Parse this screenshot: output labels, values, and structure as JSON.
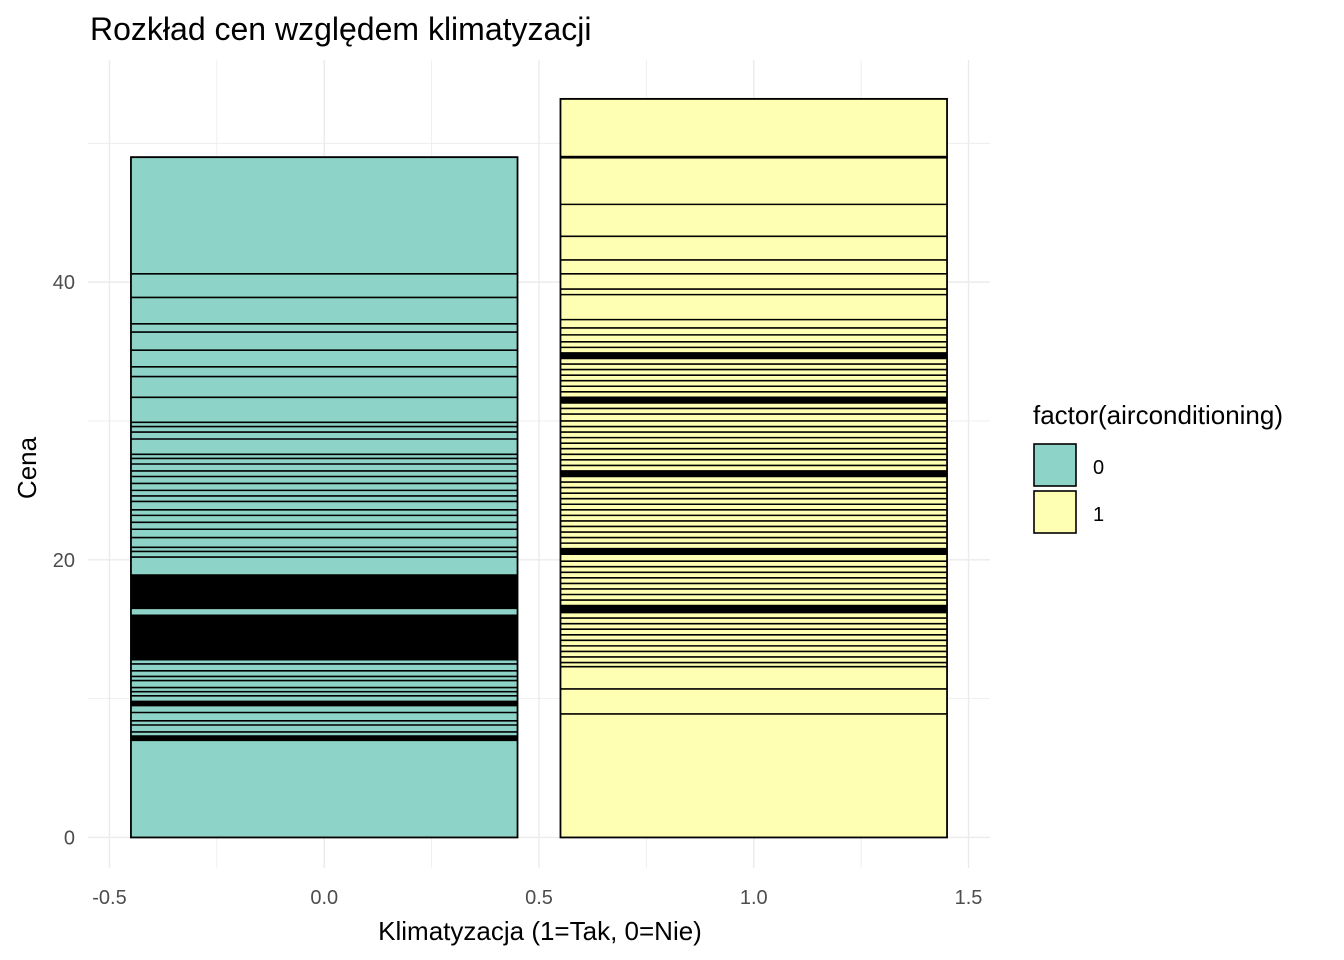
{
  "chart_data": {
    "type": "bar",
    "subtype": "stacked",
    "title": "Rozkład cen względem klimatyzacji",
    "xlabel": "Klimatyzacja (1=Tak, 0=Nie)",
    "ylabel": "Cena",
    "xlim": [
      -0.55,
      1.55
    ],
    "ylim": [
      -2.2,
      56
    ],
    "x_ticks": [
      -0.5,
      0.0,
      0.5,
      1.0,
      1.5
    ],
    "x_tick_labels": [
      "-0.5",
      "0.0",
      "0.5",
      "1.0",
      "1.5"
    ],
    "y_ticks": [
      0,
      20,
      40
    ],
    "y_tick_labels": [
      "0",
      "20",
      "40"
    ],
    "grid": true,
    "legend": {
      "title": "factor(airconditioning)",
      "position": "right",
      "entries": [
        {
          "label": "0",
          "color": "#8DD3C7"
        },
        {
          "label": "1",
          "color": "#FFFFB3"
        }
      ]
    },
    "series": [
      {
        "name": "0",
        "x": 0,
        "color": "#8DD3C7",
        "total": 49.0,
        "segment_boundaries": [
          7.0,
          7.3,
          7.6,
          8.1,
          8.4,
          9.0,
          9.5,
          9.8,
          10.2,
          10.5,
          10.8,
          11.3,
          11.6,
          12.0,
          12.5,
          12.8,
          13.0,
          14.0,
          16.0,
          16.5,
          17.0,
          18.0,
          18.9,
          20.2,
          20.6,
          20.9,
          21.6,
          22.2,
          22.7,
          23.2,
          23.6,
          24.2,
          24.6,
          25.0,
          25.5,
          26.0,
          26.4,
          26.9,
          27.3,
          27.6,
          28.7,
          29.2,
          29.6,
          29.9,
          31.7,
          33.2,
          33.9,
          35.1,
          36.4,
          37.0,
          38.9,
          40.6,
          49.0
        ],
        "dense_bands": [
          [
            12.8,
            16.0
          ],
          [
            16.5,
            18.9
          ],
          [
            7.0,
            7.3
          ],
          [
            9.5,
            9.8
          ]
        ]
      },
      {
        "name": "1",
        "x": 1,
        "color": "#FFFFB3",
        "total": 53.2,
        "segment_boundaries": [
          8.9,
          10.7,
          12.3,
          12.6,
          13.0,
          13.4,
          13.8,
          14.2,
          14.6,
          15.0,
          15.4,
          15.8,
          16.2,
          16.7,
          17.1,
          17.5,
          17.9,
          18.3,
          18.7,
          19.1,
          19.5,
          19.9,
          20.4,
          20.8,
          21.2,
          21.6,
          22.0,
          22.4,
          22.8,
          23.2,
          23.6,
          24.0,
          24.4,
          24.8,
          25.2,
          25.6,
          26.0,
          26.4,
          26.8,
          27.2,
          27.6,
          28.0,
          28.4,
          28.8,
          29.2,
          29.6,
          30.0,
          30.5,
          30.9,
          31.3,
          31.7,
          32.1,
          32.5,
          32.9,
          33.3,
          33.7,
          34.1,
          34.5,
          34.9,
          35.3,
          35.7,
          36.2,
          36.7,
          37.3,
          39.1,
          39.5,
          40.6,
          41.6,
          43.3,
          45.6,
          49.0,
          53.2
        ],
        "dense_bands": [
          [
            16.2,
            16.7
          ],
          [
            20.4,
            20.8
          ],
          [
            26.0,
            26.4
          ],
          [
            31.3,
            31.7
          ],
          [
            34.5,
            34.9
          ],
          [
            48.9,
            49.1
          ]
        ]
      }
    ]
  }
}
